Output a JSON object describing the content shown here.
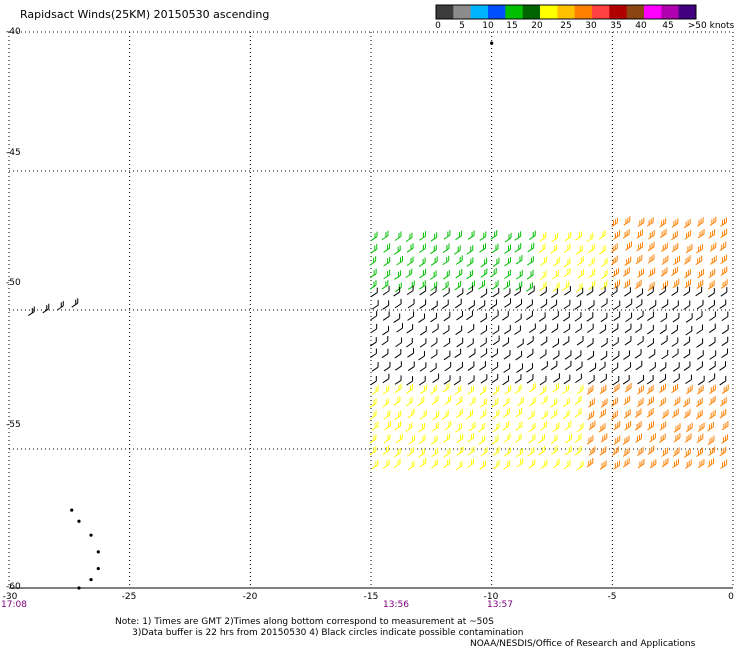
{
  "title": "Rapidsact Winds(25KM) 20150530 ascending",
  "legend": {
    "colors": [
      "#3c3c3c",
      "#8c8c8c",
      "#00b4ff",
      "#0050ff",
      "#00c000",
      "#006400",
      "#ffff00",
      "#ffc000",
      "#ff8000",
      "#ff4040",
      "#b00000",
      "#8b4513",
      "#ff00ff",
      "#b000b0",
      "#400080"
    ],
    "labels": [
      "0",
      "5",
      "10",
      "15",
      "20",
      "25",
      "30",
      "35",
      "40",
      "45",
      ">50 knots"
    ]
  },
  "axes": {
    "x_ticks": [
      "-30",
      "-25",
      "-20",
      "-15",
      "-10",
      "-5",
      "0"
    ],
    "y_ticks": [
      "-40",
      "-45",
      "-50",
      "-55",
      "-60"
    ]
  },
  "time_labels": [
    "17:08",
    "13:56",
    "13:57"
  ],
  "note": "Note: 1) Times are GMT 2)Times along bottom correspond to measurement at ~50S\n      3)Data buffer is 22 hrs from 20150530 4) Black circles indicate possible contamination",
  "credit": "NOAA/NESDIS/Office of Research and Applications",
  "chart_data": {
    "type": "scatter",
    "title": "Rapidsact Winds(25KM) 20150530 ascending",
    "xlim": [
      -30,
      0
    ],
    "ylim": [
      -60,
      -40
    ],
    "grid": true,
    "legend_position": "top-right",
    "swath": {
      "lon_range": [
        -15,
        0
      ],
      "lat_range": [
        -56,
        -47
      ]
    },
    "speed_bands_knots": [
      {
        "lat_range": [
          -49.5,
          -47.5
        ],
        "lon_range": [
          -15,
          -8
        ],
        "speed": 18,
        "color": "#00c000"
      },
      {
        "lat_range": [
          -49.5,
          -47.5
        ],
        "lon_range": [
          -8,
          -5
        ],
        "speed": 25,
        "color": "#ffff00"
      },
      {
        "lat_range": [
          -49.5,
          -47
        ],
        "lon_range": [
          -5,
          0
        ],
        "speed": 33,
        "color": "#ff8000"
      },
      {
        "lat_range": [
          -53,
          -49.5
        ],
        "lon_range": [
          -15,
          0
        ],
        "speed": 0,
        "color": "#000000"
      },
      {
        "lat_range": [
          -56,
          -53
        ],
        "lon_range": [
          -15,
          -6
        ],
        "speed": 25,
        "color": "#ffff00"
      },
      {
        "lat_range": [
          -56,
          -53
        ],
        "lon_range": [
          -6,
          0
        ],
        "speed": 32,
        "color": "#ff8000"
      }
    ]
  }
}
